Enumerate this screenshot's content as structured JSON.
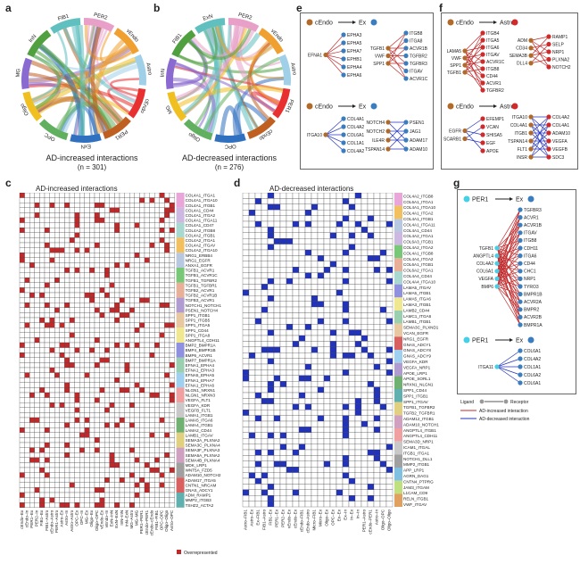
{
  "panels": {
    "a": {
      "letter": "a",
      "title": "AD-increased interactions",
      "n": "(n = 301)",
      "labels": [
        "PER2",
        "vEndo",
        "Astro",
        "cEndo",
        "PER1",
        "ExN",
        "OPC",
        "Oligo",
        "MG",
        "InN",
        "FIB1"
      ]
    },
    "b": {
      "letter": "b",
      "title": "AD-decreased interactions",
      "n": "(n = 276)",
      "labels": [
        "PER2",
        "vEndo",
        "Astro",
        "PER1",
        "cEndo",
        "OPC",
        "Oligo",
        "MG",
        "InN",
        "FIB1",
        "ExN"
      ]
    },
    "c": {
      "letter": "c",
      "title": "AD-increased interactions",
      "legend": "Overrepresented",
      "rows": [
        "COL4A1_ITGA1",
        "COL4A1_ITGA10",
        "COL4A1_ITGB1",
        "COL4A1_CD44",
        "COL4A1_ITGA2",
        "COL4A1_ITGA11",
        "COL4A1_CD47",
        "COL4A2_ITGB8",
        "COL4A2_ITGB1",
        "COL4A2_ITGA1",
        "COL4A2_ITGAV",
        "COL4A2_ITGA10",
        "NRG1_ERBB4",
        "NRG1_EGFR",
        "ANXA1_EGFR",
        "TGFB1_ACVR1",
        "TGFB1_ACVR1C",
        "TGFB1_TGFBR2",
        "TGFB1_TGFBR1",
        "TGFB2_ACVR1",
        "TGFB2_ACVR1B",
        "TGFB3_ACVR1",
        "NOTCH1_NOTCH1",
        "PSEN1_NOTCH4",
        "SPP1_ITGB1",
        "SPP1_ITGB5",
        "SPP1_ITGA5",
        "SPP1_CD44",
        "SPP1_ITGA8",
        "ANGPTL4_CDH11",
        "BMP2_BMPR1A",
        "BMP4_BMPR1B",
        "BMP6_ACVR1",
        "BMP7_BMPR1A",
        "EFNA1_EPHA4",
        "EFNA1_EPHA3",
        "EFNA5_EPHA5",
        "EFNA1_EPHA7",
        "EFNA1_EPHA6",
        "NLGN1_NRXN1",
        "NLGN1_NRXN3",
        "VEGFA_FLT1",
        "VEGFA_KDR",
        "VEGFB_FLT1",
        "LAMA1_ITGB1",
        "LAMA5_ITGA6",
        "LAMA4_ITGB1",
        "LAMA2_CD44",
        "LAMB1_ITGAV",
        "SEMA3A_PLXNA2",
        "SEMA3C_PLXNA4",
        "SEMA3F_PLXNA3",
        "SEMA6A_PLXNA2",
        "SEMA4B_PLXNA4",
        "MDK_LRP1",
        "WNT5A_FZD5",
        "ADAM10_NOTCH2",
        "ADAM17_ITGA5",
        "CNTN1_NRCAM",
        "GNAS_ADCY1",
        "ADM_RAMP1",
        "MMP2_ITGB3",
        "TSHZ2_ACTA2"
      ],
      "cols": [
        "cEndo–Ex",
        "cEndo–In",
        "PER1–Ex",
        "PER2–In",
        "FIB1–Ex",
        "FIB1–Astro",
        "cEndo–Astro",
        "PER1–Astro",
        "Astro–Ex",
        "Astro–In",
        "Astro–Astro",
        "OPC–Ex",
        "OPC–In",
        "MG–Ex",
        "Oligo–Ex",
        "Oligo–OPC",
        "vEndo–Ex",
        "vEndo–In",
        "ExN–InN",
        "ExN–ExN",
        "InN–InN",
        "InN–ExN",
        "MG–Astro",
        "MG–MG",
        "PER1–PER1",
        "cEndo–PER1",
        "cEndo–cEndo",
        "FIB1–FIB1",
        "OPC–OPC",
        "Oligo–Oligo",
        "Astro–OPC"
      ],
      "groups": [
        [
          "COLLAGEN",
          "#e9a6d8"
        ],
        [
          "EGF",
          "#ccb8e0"
        ],
        [
          "TGFB",
          "#a8d8d0"
        ],
        [
          "NOTCH",
          "#f3c060"
        ],
        [
          "SPP1",
          "#b8c8e0"
        ],
        [
          "ANGPTL",
          "#78c878"
        ],
        [
          "BMP",
          "#e8b098"
        ],
        [
          "EPHA",
          "#b09cd0"
        ],
        [
          "NRXN",
          "#e8c8a0"
        ],
        [
          "VEGF",
          "#f0e890"
        ],
        [
          "LAMININ",
          "#9090e0"
        ],
        [
          "MK",
          "#9ad0b0"
        ],
        [
          "SEMA3",
          "#a0d0f0"
        ],
        [
          "SEMA4",
          "#f0a0a0"
        ],
        [
          "SEMA6",
          "#c8c8c8"
        ],
        [
          "WNT",
          "#70b070"
        ],
        [
          "CADM",
          "#e0d080"
        ],
        [
          "ADGR",
          "#d0a0c0"
        ],
        [
          "CNTN",
          "#a0a0a0"
        ],
        [
          "GNAS",
          "#d86060"
        ],
        [
          "MMP",
          "#60b0b0"
        ]
      ]
    },
    "d": {
      "letter": "d",
      "title": "AD-decreased interactions",
      "rows": [
        "COL4A2_ITGB8",
        "COL6A1_ITGA1",
        "COL4A1_ITGA10",
        "COL4A1_ITGA2",
        "COL4A1_ITGB1",
        "COL4A1_ITGA11",
        "COL4A1_CD44",
        "COL4A2_ITGA1",
        "COL6A3_ITGB1",
        "COL4A2_ITGA2",
        "COL4A1_ITGB8",
        "COL4A4_ITGA2",
        "COL6A1_ITGB1",
        "COL6A2_ITGA1",
        "COL4A4_CD44",
        "COL4A4_ITGA10",
        "LAMA5_ITGAV",
        "LAMA5_ITGB1",
        "LAMA5_ITGA6",
        "LAMA3_ITGB1",
        "LAMB2_CD44",
        "LAMC1_ITGA6",
        "LAMB1_ITGB1",
        "SEMA3C_PLXND1",
        "VCAN_EGFR",
        "NRG1_EGFR",
        "GNAS_ADCY1",
        "GNAS_ADCY8",
        "GNAS_ADCY9",
        "VEGFA_KDR",
        "VEGFA_NRP1",
        "APOE_LRP1",
        "APOE_SORL1",
        "NRXN1_NLGN1",
        "SPP1_CD44",
        "SPP1_ITGB1",
        "SPP1_ITGAV",
        "TGFB1_TGFBR2",
        "TGFB2_TGFBR1",
        "ADAM12_ITGB1",
        "ADAM10_NOTCH1",
        "ANGPTL4_ITGB1",
        "ANGPTL4_CDH11",
        "SEMA3D_NRP1",
        "ICAM1_ITGAL",
        "ITGB1_ITGA1",
        "NOTCH1_DLL1",
        "MMP2_ITGB1",
        "APP_LRP1",
        "AGRN_DAG1",
        "CNTN4_PTPRG",
        "JAM3_ITGAM",
        "L1CAM_CD9",
        "RELN_ITGB1",
        "VWF_ITGAV"
      ],
      "cols": [
        "Astro–FIB1",
        "Astro–Ex",
        "Ex–FIB1",
        "FIB1–Astro",
        "FIB1–Ex",
        "PER1–Ex",
        "PER2–Ex",
        "vEndo–Ex",
        "cEndo–Ex",
        "cEndo–FIB1",
        "cEndo–Astro",
        "Micro–FIB1",
        "Micro–Ex",
        "Oligo–Ex",
        "OPC–Ex",
        "Ex–Ex",
        "Ex–In",
        "In–Ex",
        "In–In",
        "PER1–Astro",
        "cEndo–PER1",
        "Astro–In",
        "Oligo–OPC",
        "Oligo–Oligo"
      ],
      "groups": [
        [
          "COLLAGEN",
          "#e9a6d8"
        ],
        [
          "LAMININ",
          "#f3c060"
        ],
        [
          "SEMA3",
          "#b8c8e0"
        ],
        [
          "EGF",
          "#ccb8e0"
        ],
        [
          "GNAS",
          "#78c878"
        ],
        [
          "VEGF",
          "#e8b098"
        ],
        [
          "APOE",
          "#a8d8d0"
        ],
        [
          "NRXN",
          "#9090e0"
        ],
        [
          "SPP1",
          "#f0e890"
        ],
        [
          "TGFB",
          "#9ad0b0"
        ],
        [
          "ADAM",
          "#e8c8a0"
        ],
        [
          "ANGPTL",
          "#d86060"
        ],
        [
          "SEMA3",
          "#a0d0f0"
        ],
        [
          "ICAM",
          "#b09cd0"
        ],
        [
          "ITGB",
          "#70b070"
        ],
        [
          "NOTCH",
          "#60b0b0"
        ],
        [
          "MMP",
          "#e0d080"
        ],
        [
          "APP",
          "#d0a0c0"
        ],
        [
          "AGRN",
          "#f0a0a0"
        ],
        [
          "CNTN",
          "#c8c8c8"
        ],
        [
          "JAM",
          "#a0a0a0"
        ],
        [
          "L1CAM",
          "#80c0e0"
        ],
        [
          "RELN",
          "#c0e080"
        ],
        [
          "VWF",
          "#e0a060"
        ]
      ]
    },
    "e": {
      "letter": "e",
      "top": {
        "source": "cEndo",
        "target": "Ex",
        "ligands": [
          "EFNA1"
        ],
        "ligands2": [
          "TGFB1",
          "VWF",
          "SPP1"
        ],
        "receptors": [
          "EPHA3",
          "EPHA5",
          "EPHA7",
          "EPHB1",
          "EPHA4",
          "EPHA6"
        ],
        "receptors2": [
          "ITGB8",
          "ITGA8",
          "ACVR1B",
          "TGFBR2",
          "TGFBR3",
          "ITGAV",
          "ACVR1C"
        ]
      },
      "bottom": {
        "source": "cEndo",
        "target": "Ex",
        "ligands": [
          "ITGA10"
        ],
        "ligands2": [
          "NOTCH4",
          "NOTCH2",
          "ILE4R",
          "TSPAN14"
        ],
        "receptors": [
          "COL4A1",
          "COL4A2",
          "COL6A1",
          "COL1A1",
          "COL4A2"
        ],
        "receptors2": [
          "PSEN1",
          "JAG1",
          "ADAM17",
          "ADAM10"
        ]
      }
    },
    "f": {
      "letter": "f",
      "top": {
        "source": "cEndo",
        "target": "Astro",
        "ligands": [
          "LAMA5",
          "VWF",
          "SPP1",
          "TGFB1"
        ],
        "mid": [
          "ITGB4",
          "ITGA5",
          "ITGA6",
          "ITGAV",
          "ACVR1C",
          "ITGB8",
          "CD44",
          "ACVR1",
          "TGFBR2"
        ],
        "ligands2": [
          "ADM",
          "CD34",
          "SEMA3B",
          "DLL4"
        ],
        "receptors2": [
          "RAMP1",
          "SELP",
          "NRP1",
          "PLXNA2",
          "NOTCH2"
        ]
      },
      "bottom": {
        "source": "cEndo",
        "target": "Astro",
        "ligands": [
          "EGFR",
          "SCARB1"
        ],
        "mid": [
          "EFEMP1",
          "VCAN",
          "SHISA5",
          "EGF",
          "APOE"
        ],
        "ligands2": [
          "ITGA10",
          "COL4A1",
          "ITGB1",
          "TSPAN14",
          "FLT1",
          "INSR"
        ],
        "receptors2": [
          "COL4A2",
          "COL4A1",
          "ADAM10",
          "VEGFA",
          "VEGFB",
          "SDC3"
        ]
      }
    },
    "g": {
      "letter": "g",
      "top": {
        "source": "PER1",
        "target": "Ex",
        "ligands": [
          "TGFB1",
          "ANGPTL4",
          "COL4A2",
          "COL6A1",
          "VEGFA",
          "BMP6"
        ],
        "receptors": [
          "TGFBR3",
          "ACVR1",
          "ACVR1B",
          "ITGAV",
          "ITGB8",
          "CDH11",
          "ITGA6",
          "CD44",
          "CHC1",
          "NRP1",
          "TYRO3",
          "BMPR1B",
          "ACVR2A",
          "BMPR2",
          "ACVR2B",
          "BMPR1A"
        ]
      },
      "bottom": {
        "source": "PER1",
        "target": "Ex",
        "ligands": [
          "ITGA11"
        ],
        "receptors": [
          "COL6A1",
          "COL4A2",
          "COL1A1",
          "COL6A2",
          "COL6A1"
        ]
      },
      "legend_ligand": "Ligand",
      "legend_receptor": "Receptor",
      "legend_inc": "AD-increased interaction",
      "legend_dec": "AD-decreased interaction"
    }
  },
  "colors": {
    "increased": "#c0282a",
    "decreased": "#2233bb",
    "cEndo": "#b06a2a",
    "Ex": "#3a7ec0",
    "Astro": "#d02a2a",
    "PER1": "#46d0e8"
  }
}
